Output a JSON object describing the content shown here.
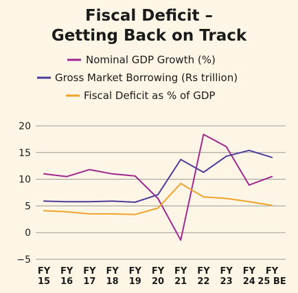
{
  "chart_data": {
    "type": "line",
    "title_lines": [
      "Fiscal Deficit –",
      "Getting Back on Track"
    ],
    "xlabel": "",
    "ylabel": "",
    "categories": [
      [
        "FY",
        "15"
      ],
      [
        "FY",
        "16"
      ],
      [
        "FY",
        "17"
      ],
      [
        "FY",
        "18"
      ],
      [
        "FY",
        "19"
      ],
      [
        "FY",
        "20"
      ],
      [
        "FY",
        "21"
      ],
      [
        "FY",
        "22"
      ],
      [
        "FY",
        "23"
      ],
      [
        "FY",
        "24"
      ],
      [
        "FY",
        "25 BE"
      ]
    ],
    "ylim": [
      -5,
      20
    ],
    "yticks": [
      -5,
      0,
      5,
      10,
      15,
      20
    ],
    "ytick_labels": [
      "−5",
      "0",
      "5",
      "10",
      "15",
      "20"
    ],
    "grid": true,
    "legend_position": "top",
    "series": [
      {
        "name": "Nominal GDP Growth (%)",
        "color": "#a0278f",
        "values": [
          11.0,
          10.5,
          11.8,
          11.0,
          10.6,
          6.4,
          -1.4,
          18.4,
          16.1,
          8.9,
          10.5
        ]
      },
      {
        "name": "Gross Market Borrowing (Rs trillion)",
        "color": "#4b3b9c",
        "values": [
          5.9,
          5.8,
          5.8,
          5.9,
          5.7,
          7.1,
          13.7,
          11.3,
          14.3,
          15.4,
          14.1
        ]
      },
      {
        "name": "Fiscal Deficit as % of GDP",
        "color": "#f0a32a",
        "values": [
          4.1,
          3.9,
          3.5,
          3.5,
          3.4,
          4.6,
          9.2,
          6.7,
          6.4,
          5.8,
          5.1
        ]
      }
    ]
  }
}
